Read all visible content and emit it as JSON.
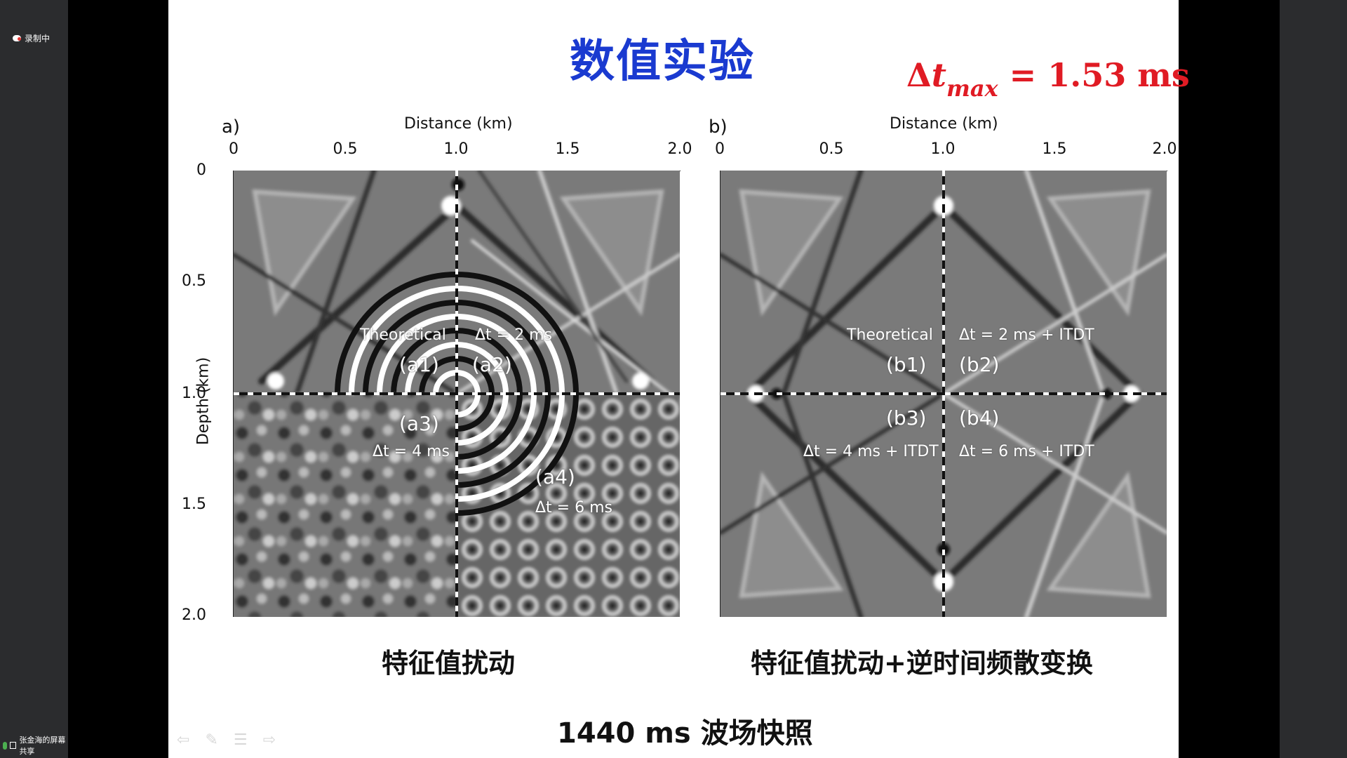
{
  "app": {
    "recording_label": "录制中",
    "screen_share_label": "张金海的屏幕共享"
  },
  "slide": {
    "title": "数值实验",
    "dt_max": {
      "delta": "Δ",
      "t": "t",
      "sub": "max",
      "value": " = 1.53 ms"
    },
    "panel_a": {
      "letter": "a)",
      "x_axis_title": "Distance (km)",
      "x_ticks": [
        "0",
        "0.5",
        "1.0",
        "1.5",
        "2.0"
      ],
      "y_axis_title": "Depth (km)",
      "y_ticks": [
        "0",
        "0.5",
        "1.0",
        "1.5",
        "2.0"
      ],
      "q1": {
        "desc": "Theoretical",
        "label": "(a1)"
      },
      "q2": {
        "desc": "Δt = 2 ms",
        "label": "(a2)"
      },
      "q3": {
        "desc": "Δt = 4 ms",
        "label": "(a3)"
      },
      "q4": {
        "desc": "Δt = 6 ms",
        "label": "(a4)"
      },
      "caption": "特征值扰动"
    },
    "panel_b": {
      "letter": "b)",
      "x_axis_title": "Distance (km)",
      "x_ticks": [
        "0",
        "0.5",
        "1.0",
        "1.5",
        "2.0"
      ],
      "q1": {
        "desc": "Theoretical",
        "label": "(b1)"
      },
      "q2": {
        "desc": "Δt = 2 ms + ITDT",
        "label": "(b2)"
      },
      "q3": {
        "desc": "Δt = 4 ms + ITDT",
        "label": "(b3)"
      },
      "q4": {
        "desc": "Δt = 6 ms + ITDT",
        "label": "(b4)"
      },
      "caption": "特征值扰动+逆时间频散变换"
    },
    "bottom_caption": "1440 ms 波场快照"
  },
  "toolbar": {
    "icons": [
      "arrow-left-icon",
      "pen-icon",
      "menu-icon",
      "arrow-right-icon"
    ]
  },
  "colors": {
    "title": "#1a3ad0",
    "dt_max": "#e01b24"
  }
}
